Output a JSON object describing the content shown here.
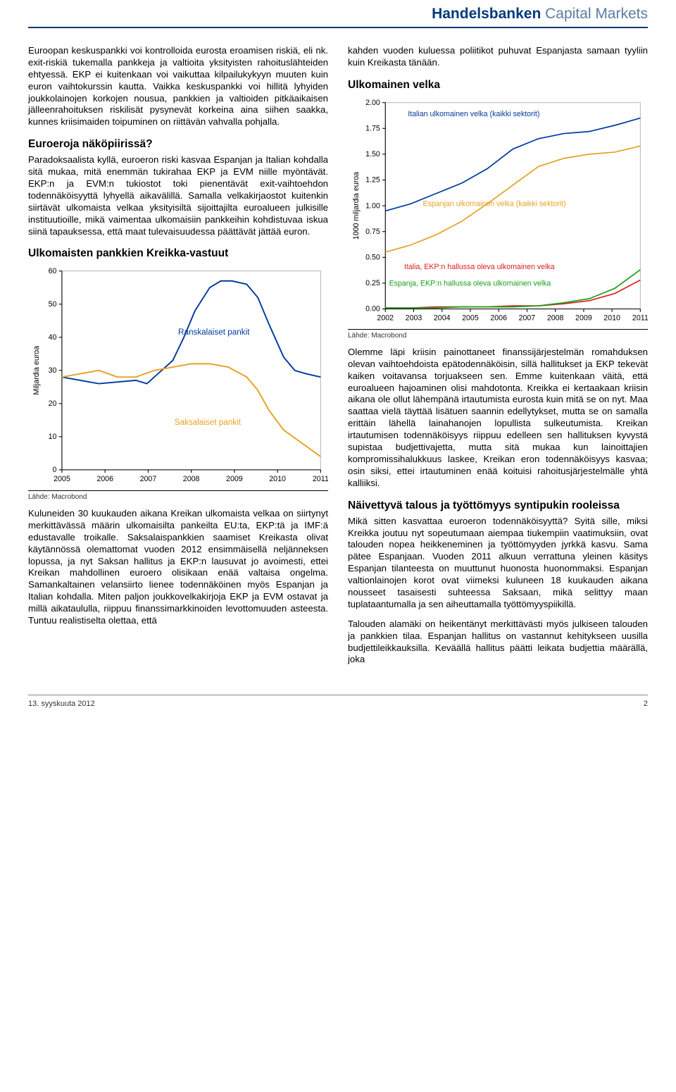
{
  "header": {
    "brand_bold": "Handelsbanken",
    "brand_light": " Capital Markets"
  },
  "left": {
    "p1": "Euroopan keskuspankki voi kontrolloida eurosta eroamisen riskiä, eli nk. exit-riskiä tukemalla pankkeja ja valtioita yksityisten rahoituslähteiden ehtyessä. EKP ei kuitenkaan voi vaikuttaa kilpailukykyyn muuten kuin euron vaihtokurssin kautta. Vaikka keskuspankki voi hillitä lyhyiden joukkolainojen korkojen nousua, pankkien ja valtioiden pitkäaikaisen jälleenrahoituksen riskilisät pysynevät korkeina aina siihen saakka, kunnes kriisimaiden toipuminen on riittävän vahvalla pohjalla.",
    "h1": "Euroeroja näköpiirissä?",
    "p2": "Paradoksaalista kyllä, euroeron riski kasvaa Espanjan ja Italian kohdalla sitä mukaa, mitä enemmän tukirahaa EKP ja EVM niille myöntävät. EKP:n ja EVM:n tukiostot toki pienentävät exit-vaihtoehdon todennäköisyyttä lyhyellä aikavälillä. Samalla velkakirjaostot kuitenkin siirtävät ulkomaista velkaa yksityisiltä sijoittajilta euroalueen julkisille instituutioille, mikä vaimentaa ulkomaisiin pankkeihin kohdistuvaa iskua siinä tapauksessa, että maat tulevaisuudessa päättävät jättää euron.",
    "chart_title": "Ulkomaisten pankkien Kreikka-vastuut",
    "chart_caption": "Lähde: Macrobond",
    "p3": "Kuluneiden 30 kuukauden aikana Kreikan ulkomaista velkaa on siirtynyt merkittävässä määrin ulkomaisilta pankeilta EU:ta, EKP:tä ja IMF:ä edustavalle troikalle. Saksalaispankkien saamiset Kreikasta olivat käytännössä olemattomat vuoden 2012 ensimmäisellä neljänneksen lopussa, ja nyt Saksan hallitus ja EKP:n lausuvat jo avoimesti, ettei Kreikan mahdollinen euroero olisikaan enää valtaisa ongelma. Samankaltainen velansiirto lienee todennäköinen myös Espanjan ja Italian kohdalla. Miten paljon joukkovelkakirjoja EKP ja EVM ostavat ja millä aikataululla, riippuu finanssimarkkinoiden levottomuuden asteesta. Tuntuu realistiselta olettaa, että",
    "chart1": {
      "type": "line",
      "y_label": "Miljardia euroa",
      "x_ticks": [
        "2005",
        "2006",
        "2007",
        "2008",
        "2009",
        "2010",
        "2011"
      ],
      "y_ticks": [
        0,
        10,
        20,
        30,
        40,
        50,
        60
      ],
      "series": [
        {
          "label": "Ranskalaiset pankit",
          "color": "#003a9e",
          "label_pos": {
            "x": 200,
            "y": 95
          },
          "points": [
            [
              0,
              28
            ],
            [
              1,
              26
            ],
            [
              2,
              27
            ],
            [
              2.3,
              26
            ],
            [
              2.6,
              29
            ],
            [
              3,
              33
            ],
            [
              3.3,
              40
            ],
            [
              3.6,
              48
            ],
            [
              4,
              55
            ],
            [
              4.3,
              57
            ],
            [
              4.6,
              57
            ],
            [
              5,
              56
            ],
            [
              5.3,
              52
            ],
            [
              5.6,
              44
            ],
            [
              6,
              34
            ],
            [
              6.3,
              30
            ],
            [
              6.6,
              29
            ],
            [
              7,
              28
            ]
          ]
        },
        {
          "label": "Saksalaiset pankit",
          "color": "#e8a023",
          "label_pos": {
            "x": 195,
            "y": 215
          },
          "points": [
            [
              0,
              28
            ],
            [
              1,
              30
            ],
            [
              1.5,
              28
            ],
            [
              2,
              28
            ],
            [
              2.5,
              30
            ],
            [
              3,
              31
            ],
            [
              3.5,
              32
            ],
            [
              4,
              32
            ],
            [
              4.5,
              31
            ],
            [
              5,
              28
            ],
            [
              5.3,
              24
            ],
            [
              5.6,
              18
            ],
            [
              6,
              12
            ],
            [
              6.5,
              8
            ],
            [
              7,
              4
            ]
          ]
        }
      ]
    }
  },
  "right": {
    "p1": "kahden vuoden kuluessa poliitikot puhuvat Espanjasta samaan tyyliin kuin Kreikasta tänään.",
    "chart_title": "Ulkomainen velka",
    "chart_caption": "Lähde: Macrobond",
    "p2": "Olemme läpi kriisin painottaneet finanssijärjestelmän romahduksen olevan vaihtoehdoista epätodennäköisin, sillä hallitukset ja EKP tekevät kaiken voitavansa torjuakseen sen. Emme kuitenkaan väitä, että euroalueen hajoaminen olisi mahdotonta. Kreikka ei kertaakaan kriisin aikana ole ollut lähempänä irtautumista eurosta kuin mitä se on nyt. Maa saattaa vielä täyttää lisätuen saannin edellytykset, mutta se on samalla erittäin lähellä lainahanojen lopullista sulkeutumista. Kreikan irtautumisen todennäköisyys riippuu edelleen sen hallituksen kyvystä supistaa budjettivajetta, mutta sitä mukaa kun lainoittajien kompromissihalukkuus laskee, Kreikan eron todennäköisyys kasvaa; osin siksi, ettei irtautuminen enää koituisi rahoitusjärjestelmälle yhtä kalliiksi.",
    "h2": "Näivettyvä talous ja työttömyys syntipukin rooleissa",
    "p3": "Mikä sitten kasvattaa euroeron todennäköisyyttä? Syitä sille, miksi Kreikka joutuu nyt sopeutumaan aiempaa tiukempiin vaatimuksiin, ovat talouden nopea heikkeneminen ja työttömyyden jyrkkä kasvu. Sama pätee Espanjaan. Vuoden 2011 alkuun verrattuna yleinen käsitys Espanjan tilanteesta on muuttunut huonosta huonommaksi. Espanjan valtionlainojen korot ovat viimeksi kuluneen 18 kuukauden aikana nousseet tasaisesti suhteessa Saksaan, mikä selittyy maan tuplataantumalla ja sen aiheuttamalla työttömyyspiikillä.",
    "p4": "Talouden alamäki on heikentänyt merkittävästi myös julkiseen talouden ja pankkien tilaa. Espanjan hallitus on vastannut kehitykseen uusilla budjettileikkauksilla. Keväällä hallitus päätti leikata budjettia määrällä, joka",
    "chart2": {
      "type": "line",
      "y_label": "1000 miljardia euroa",
      "x_ticks": [
        "2002",
        "2003",
        "2004",
        "2005",
        "2006",
        "2007",
        "2008",
        "2009",
        "2010",
        "2011"
      ],
      "y_ticks": [
        0.0,
        0.25,
        0.5,
        0.75,
        1.0,
        1.25,
        1.5,
        1.75,
        2.0
      ],
      "series": [
        {
          "label": "Italian ulkomainen velka (kaikki sektorit)",
          "color": "#003a9e",
          "label_pos": {
            "x": 80,
            "y": 28
          },
          "points": [
            [
              0,
              0.95
            ],
            [
              1,
              1.02
            ],
            [
              2,
              1.12
            ],
            [
              3,
              1.22
            ],
            [
              4,
              1.36
            ],
            [
              5,
              1.55
            ],
            [
              6,
              1.65
            ],
            [
              7,
              1.7
            ],
            [
              8,
              1.72
            ],
            [
              9,
              1.78
            ],
            [
              10,
              1.85
            ]
          ]
        },
        {
          "label": "Espanjan ulkomainen velka (kaikki sektorit)",
          "color": "#e8a023",
          "label_pos": {
            "x": 100,
            "y": 148
          },
          "points": [
            [
              0,
              0.55
            ],
            [
              1,
              0.62
            ],
            [
              2,
              0.72
            ],
            [
              3,
              0.85
            ],
            [
              4,
              1.02
            ],
            [
              5,
              1.2
            ],
            [
              6,
              1.38
            ],
            [
              7,
              1.46
            ],
            [
              8,
              1.5
            ],
            [
              9,
              1.52
            ],
            [
              10,
              1.58
            ]
          ]
        },
        {
          "label": "Italia, EKP:n hallussa oleva ulkomainen velka",
          "color": "#d92020",
          "label_pos": {
            "x": 75,
            "y": 232
          },
          "points": [
            [
              0,
              0.01
            ],
            [
              1,
              0.01
            ],
            [
              2,
              0.02
            ],
            [
              3,
              0.02
            ],
            [
              4,
              0.02
            ],
            [
              5,
              0.03
            ],
            [
              6,
              0.03
            ],
            [
              7,
              0.05
            ],
            [
              8,
              0.08
            ],
            [
              9,
              0.15
            ],
            [
              10,
              0.28
            ]
          ]
        },
        {
          "label": "Espanja, EKP:n hallussa oleva ulkomainen velka",
          "color": "#1aa01a",
          "label_pos": {
            "x": 55,
            "y": 254
          },
          "points": [
            [
              0,
              0.01
            ],
            [
              1,
              0.01
            ],
            [
              2,
              0.01
            ],
            [
              3,
              0.02
            ],
            [
              4,
              0.02
            ],
            [
              5,
              0.02
            ],
            [
              6,
              0.03
            ],
            [
              7,
              0.06
            ],
            [
              8,
              0.1
            ],
            [
              9,
              0.2
            ],
            [
              10,
              0.38
            ]
          ]
        }
      ]
    }
  },
  "footer": {
    "date": "13. syyskuuta 2012",
    "page": "2"
  }
}
